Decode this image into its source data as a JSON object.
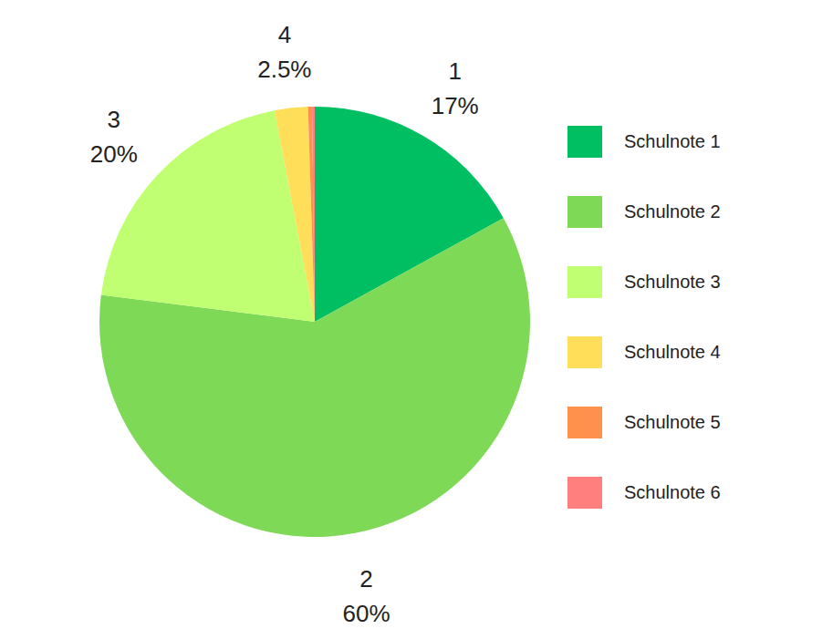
{
  "chart_data": {
    "type": "pie",
    "categories": [
      "Schulnote 1",
      "Schulnote 2",
      "Schulnote 3",
      "Schulnote 4",
      "Schulnote 5",
      "Schulnote 6"
    ],
    "slice_labels": [
      "1",
      "2",
      "3",
      "4",
      null,
      null
    ],
    "values": [
      17,
      60,
      20,
      2.5,
      0.3,
      0.2
    ],
    "value_labels": [
      "17%",
      "60%",
      "20%",
      "2.5%",
      null,
      null
    ],
    "colors": [
      "#00bf63",
      "#7ed957",
      "#c1ff72",
      "#ffde59",
      "#ff914d",
      "#ff7f7f"
    ],
    "data_labels": true,
    "legend": "right"
  }
}
